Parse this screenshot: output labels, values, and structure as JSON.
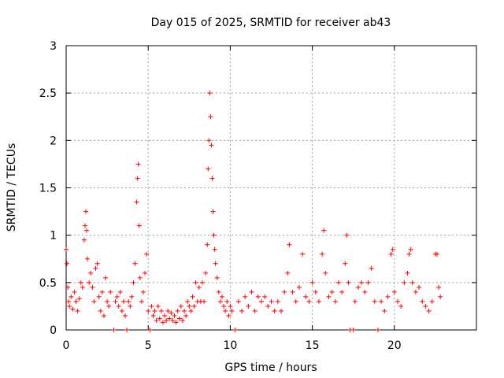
{
  "chart_data": {
    "type": "scatter",
    "title": "Day 015 of 2025, SRMTID for receiver ab43",
    "xlabel": "GPS time / hours",
    "ylabel": "SRMTID / TECUs",
    "xlim": [
      0,
      25
    ],
    "ylim": [
      0,
      3
    ],
    "xticks": [
      0,
      5,
      10,
      15,
      20
    ],
    "xtick_labels": [
      "0",
      "5",
      "10",
      "15",
      "20"
    ],
    "yticks": [
      0,
      0.5,
      1,
      1.5,
      2,
      2.5,
      3
    ],
    "ytick_labels": [
      "0",
      "0.5",
      "1",
      "1.5",
      "2",
      "2.5",
      "3"
    ],
    "grid": true,
    "marker": "plus",
    "color": "#ff0000",
    "series": [
      {
        "name": "SRMTID",
        "points": [
          [
            0.0,
            0.85
          ],
          [
            0.05,
            0.7
          ],
          [
            0.1,
            0.45
          ],
          [
            0.15,
            0.3
          ],
          [
            0.2,
            0.25
          ],
          [
            0.3,
            0.35
          ],
          [
            0.4,
            0.22
          ],
          [
            0.5,
            0.4
          ],
          [
            0.6,
            0.3
          ],
          [
            0.7,
            0.2
          ],
          [
            0.8,
            0.33
          ],
          [
            0.9,
            0.5
          ],
          [
            1.0,
            0.45
          ],
          [
            1.1,
            0.95
          ],
          [
            1.15,
            1.1
          ],
          [
            1.2,
            1.25
          ],
          [
            1.25,
            1.05
          ],
          [
            1.3,
            0.75
          ],
          [
            1.4,
            0.5
          ],
          [
            1.5,
            0.6
          ],
          [
            1.6,
            0.45
          ],
          [
            1.7,
            0.3
          ],
          [
            1.8,
            0.65
          ],
          [
            1.9,
            0.7
          ],
          [
            2.0,
            0.35
          ],
          [
            2.1,
            0.2
          ],
          [
            2.2,
            0.4
          ],
          [
            2.3,
            0.15
          ],
          [
            2.4,
            0.55
          ],
          [
            2.5,
            0.3
          ],
          [
            2.6,
            0.25
          ],
          [
            2.7,
            0.4
          ],
          [
            2.9,
            0.0
          ],
          [
            3.0,
            0.3
          ],
          [
            3.1,
            0.35
          ],
          [
            3.2,
            0.25
          ],
          [
            3.3,
            0.4
          ],
          [
            3.4,
            0.2
          ],
          [
            3.5,
            0.3
          ],
          [
            3.6,
            0.15
          ],
          [
            3.7,
            0.0
          ],
          [
            3.8,
            0.3
          ],
          [
            3.9,
            0.25
          ],
          [
            4.0,
            0.35
          ],
          [
            4.1,
            0.5
          ],
          [
            4.2,
            0.7
          ],
          [
            4.3,
            1.35
          ],
          [
            4.35,
            1.6
          ],
          [
            4.4,
            1.75
          ],
          [
            4.45,
            1.1
          ],
          [
            4.5,
            0.55
          ],
          [
            4.6,
            0.3
          ],
          [
            4.7,
            0.4
          ],
          [
            4.8,
            0.6
          ],
          [
            4.9,
            0.8
          ],
          [
            5.0,
            0.2
          ],
          [
            5.1,
            0.0
          ],
          [
            5.2,
            0.25
          ],
          [
            5.3,
            0.15
          ],
          [
            5.4,
            0.2
          ],
          [
            5.5,
            0.1
          ],
          [
            5.6,
            0.25
          ],
          [
            5.7,
            0.12
          ],
          [
            5.8,
            0.2
          ],
          [
            5.9,
            0.08
          ],
          [
            6.0,
            0.15
          ],
          [
            6.1,
            0.1
          ],
          [
            6.2,
            0.2
          ],
          [
            6.3,
            0.12
          ],
          [
            6.4,
            0.18
          ],
          [
            6.5,
            0.1
          ],
          [
            6.6,
            0.15
          ],
          [
            6.7,
            0.08
          ],
          [
            6.8,
            0.2
          ],
          [
            6.9,
            0.12
          ],
          [
            7.0,
            0.25
          ],
          [
            7.1,
            0.1
          ],
          [
            7.2,
            0.2
          ],
          [
            7.3,
            0.15
          ],
          [
            7.4,
            0.3
          ],
          [
            7.5,
            0.25
          ],
          [
            7.6,
            0.2
          ],
          [
            7.7,
            0.35
          ],
          [
            7.8,
            0.25
          ],
          [
            7.9,
            0.5
          ],
          [
            8.0,
            0.3
          ],
          [
            8.1,
            0.45
          ],
          [
            8.2,
            0.3
          ],
          [
            8.3,
            0.5
          ],
          [
            8.4,
            0.3
          ],
          [
            8.5,
            0.6
          ],
          [
            8.6,
            0.9
          ],
          [
            8.65,
            1.7
          ],
          [
            8.7,
            2.0
          ],
          [
            8.75,
            2.5
          ],
          [
            8.8,
            2.25
          ],
          [
            8.85,
            1.95
          ],
          [
            8.9,
            1.6
          ],
          [
            8.95,
            1.25
          ],
          [
            9.0,
            1.0
          ],
          [
            9.05,
            0.85
          ],
          [
            9.1,
            0.7
          ],
          [
            9.2,
            0.55
          ],
          [
            9.3,
            0.4
          ],
          [
            9.4,
            0.3
          ],
          [
            9.5,
            0.35
          ],
          [
            9.6,
            0.25
          ],
          [
            9.7,
            0.2
          ],
          [
            9.8,
            0.3
          ],
          [
            9.9,
            0.15
          ],
          [
            10.0,
            0.25
          ],
          [
            10.1,
            0.2
          ],
          [
            10.3,
            0.0
          ],
          [
            10.5,
            0.3
          ],
          [
            10.7,
            0.2
          ],
          [
            10.9,
            0.35
          ],
          [
            11.1,
            0.25
          ],
          [
            11.3,
            0.4
          ],
          [
            11.5,
            0.2
          ],
          [
            11.7,
            0.35
          ],
          [
            11.9,
            0.3
          ],
          [
            12.1,
            0.35
          ],
          [
            12.3,
            0.25
          ],
          [
            12.5,
            0.3
          ],
          [
            12.7,
            0.2
          ],
          [
            12.9,
            0.3
          ],
          [
            13.1,
            0.2
          ],
          [
            13.3,
            0.4
          ],
          [
            13.5,
            0.6
          ],
          [
            13.6,
            0.9
          ],
          [
            13.8,
            0.4
          ],
          [
            14.0,
            0.3
          ],
          [
            14.2,
            0.45
          ],
          [
            14.4,
            0.8
          ],
          [
            14.6,
            0.35
          ],
          [
            14.8,
            0.3
          ],
          [
            15.0,
            0.5
          ],
          [
            15.2,
            0.4
          ],
          [
            15.4,
            0.3
          ],
          [
            15.6,
            0.8
          ],
          [
            15.7,
            1.05
          ],
          [
            15.8,
            0.6
          ],
          [
            16.0,
            0.35
          ],
          [
            16.2,
            0.4
          ],
          [
            16.4,
            0.3
          ],
          [
            16.6,
            0.5
          ],
          [
            16.8,
            0.4
          ],
          [
            17.0,
            0.7
          ],
          [
            17.1,
            1.0
          ],
          [
            17.2,
            0.5
          ],
          [
            17.3,
            0.0
          ],
          [
            17.5,
            0.0
          ],
          [
            17.6,
            0.3
          ],
          [
            17.8,
            0.45
          ],
          [
            18.0,
            0.5
          ],
          [
            18.2,
            0.4
          ],
          [
            18.4,
            0.5
          ],
          [
            18.6,
            0.65
          ],
          [
            18.8,
            0.3
          ],
          [
            19.0,
            0.0
          ],
          [
            19.2,
            0.3
          ],
          [
            19.4,
            0.2
          ],
          [
            19.6,
            0.35
          ],
          [
            19.8,
            0.8
          ],
          [
            19.9,
            0.85
          ],
          [
            20.0,
            0.4
          ],
          [
            20.2,
            0.3
          ],
          [
            20.4,
            0.25
          ],
          [
            20.6,
            0.5
          ],
          [
            20.8,
            0.6
          ],
          [
            20.9,
            0.8
          ],
          [
            21.0,
            0.85
          ],
          [
            21.1,
            0.5
          ],
          [
            21.3,
            0.4
          ],
          [
            21.5,
            0.45
          ],
          [
            21.7,
            0.3
          ],
          [
            21.9,
            0.25
          ],
          [
            22.1,
            0.2
          ],
          [
            22.3,
            0.3
          ],
          [
            22.5,
            0.8
          ],
          [
            22.6,
            0.8
          ],
          [
            22.7,
            0.45
          ],
          [
            22.8,
            0.35
          ]
        ]
      }
    ]
  }
}
